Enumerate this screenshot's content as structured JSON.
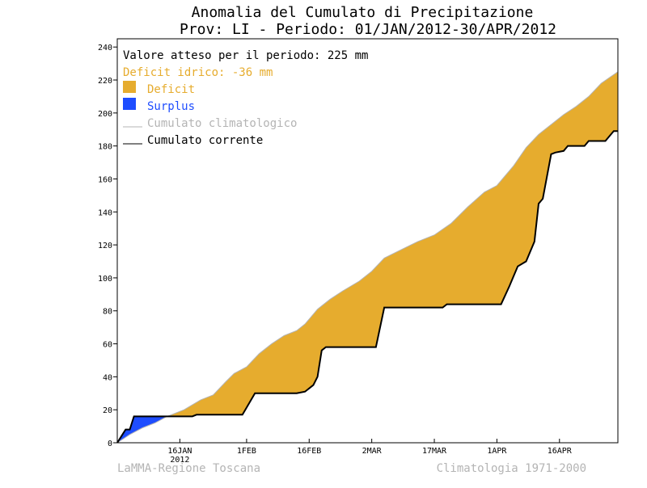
{
  "chart_data": {
    "type": "area",
    "title": "Anomalia del Cumulato di Precipitazione",
    "subtitle": "Prov: LI - Periodo: 01/JAN/2012-30/APR/2012",
    "xlim": [
      "2012-01-01",
      "2012-04-30"
    ],
    "ylim": [
      0,
      245
    ],
    "y_ticks": [
      0,
      20,
      40,
      60,
      80,
      100,
      120,
      140,
      160,
      180,
      200,
      220,
      240
    ],
    "x_ticks": [
      {
        "date": "2012-01-16",
        "label": "16JAN"
      },
      {
        "date": "2012-02-01",
        "label": "1FEB"
      },
      {
        "date": "2012-02-16",
        "label": "16FEB"
      },
      {
        "date": "2012-03-02",
        "label": "2MAR"
      },
      {
        "date": "2012-03-17",
        "label": "17MAR"
      },
      {
        "date": "2012-04-01",
        "label": "1APR"
      },
      {
        "date": "2012-04-16",
        "label": "16APR"
      }
    ],
    "year_label": "2012",
    "legend": {
      "expected_text": "Valore atteso per il periodo: 225 mm",
      "deficit_text": "Deficit idrico: -36 mm",
      "items": [
        {
          "key": "deficit",
          "label": "Deficit",
          "color": "#e6ac2e",
          "kind": "fill"
        },
        {
          "key": "surplus",
          "label": "Surplus",
          "color": "#1e4dff",
          "kind": "fill"
        },
        {
          "key": "climatological",
          "label": "Cumulato climatologico",
          "color": "#b4b4b4",
          "kind": "line"
        },
        {
          "key": "current",
          "label": "Cumulato corrente",
          "color": "#000000",
          "kind": "line"
        }
      ]
    },
    "series": [
      {
        "name": "Cumulato climatologico",
        "color": "#b4b4b4",
        "points": [
          [
            "2012-01-01",
            0
          ],
          [
            "2012-01-04",
            5
          ],
          [
            "2012-01-07",
            9
          ],
          [
            "2012-01-10",
            12
          ],
          [
            "2012-01-13",
            16
          ],
          [
            "2012-01-17",
            20
          ],
          [
            "2012-01-21",
            26
          ],
          [
            "2012-01-24",
            29
          ],
          [
            "2012-01-27",
            37
          ],
          [
            "2012-01-29",
            42
          ],
          [
            "2012-02-01",
            46
          ],
          [
            "2012-02-04",
            54
          ],
          [
            "2012-02-07",
            60
          ],
          [
            "2012-02-10",
            65
          ],
          [
            "2012-02-13",
            68
          ],
          [
            "2012-02-15",
            72
          ],
          [
            "2012-02-18",
            81
          ],
          [
            "2012-02-21",
            87
          ],
          [
            "2012-02-24",
            92
          ],
          [
            "2012-02-28",
            98
          ],
          [
            "2012-03-02",
            104
          ],
          [
            "2012-03-05",
            112
          ],
          [
            "2012-03-09",
            117
          ],
          [
            "2012-03-13",
            122
          ],
          [
            "2012-03-17",
            126
          ],
          [
            "2012-03-21",
            133
          ],
          [
            "2012-03-25",
            143
          ],
          [
            "2012-03-29",
            152
          ],
          [
            "2012-04-01",
            156
          ],
          [
            "2012-04-05",
            168
          ],
          [
            "2012-04-08",
            179
          ],
          [
            "2012-04-11",
            187
          ],
          [
            "2012-04-14",
            193
          ],
          [
            "2012-04-17",
            199
          ],
          [
            "2012-04-20",
            204
          ],
          [
            "2012-04-23",
            210
          ],
          [
            "2012-04-26",
            218
          ],
          [
            "2012-04-30",
            225
          ]
        ]
      },
      {
        "name": "Cumulato corrente",
        "color": "#000000",
        "points": [
          [
            "2012-01-01",
            0
          ],
          [
            "2012-01-02",
            4
          ],
          [
            "2012-01-03",
            8
          ],
          [
            "2012-01-04",
            8
          ],
          [
            "2012-01-05",
            16
          ],
          [
            "2012-01-19",
            16
          ],
          [
            "2012-01-20",
            17
          ],
          [
            "2012-01-31",
            17
          ],
          [
            "2012-02-03",
            30
          ],
          [
            "2012-02-13",
            30
          ],
          [
            "2012-02-15",
            31
          ],
          [
            "2012-02-17",
            35
          ],
          [
            "2012-02-18",
            40
          ],
          [
            "2012-02-19",
            56
          ],
          [
            "2012-02-20",
            58
          ],
          [
            "2012-03-03",
            58
          ],
          [
            "2012-03-05",
            82
          ],
          [
            "2012-03-19",
            82
          ],
          [
            "2012-03-20",
            84
          ],
          [
            "2012-04-02",
            84
          ],
          [
            "2012-04-04",
            95
          ],
          [
            "2012-04-06",
            107
          ],
          [
            "2012-04-08",
            110
          ],
          [
            "2012-04-10",
            122
          ],
          [
            "2012-04-11",
            145
          ],
          [
            "2012-04-12",
            148
          ],
          [
            "2012-04-14",
            175
          ],
          [
            "2012-04-15",
            176
          ],
          [
            "2012-04-17",
            177
          ],
          [
            "2012-04-18",
            180
          ],
          [
            "2012-04-22",
            180
          ],
          [
            "2012-04-23",
            183
          ],
          [
            "2012-04-27",
            183
          ],
          [
            "2012-04-29",
            189
          ],
          [
            "2012-04-30",
            189
          ]
        ]
      }
    ]
  },
  "footer": {
    "left": "LaMMA-Regione Toscana",
    "right": "Climatologia 1971-2000"
  }
}
